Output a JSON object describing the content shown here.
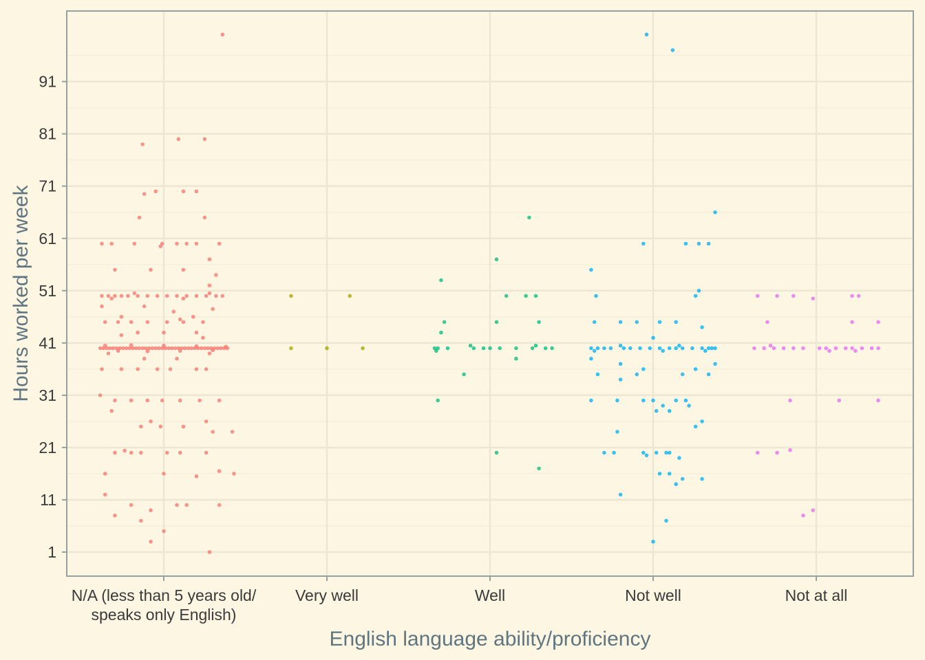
{
  "chart_data": {
    "type": "scatter",
    "jitter": "horizontal",
    "xlabel": "English language ability/proficiency",
    "ylabel": "Hours worked per week",
    "categories": [
      "N/A (less than 5 years old/\nspeaks only English)",
      "Very well",
      "Well",
      "Not well",
      "Not at all"
    ],
    "category_lines": [
      [
        "N/A (less than 5 years old/",
        "speaks only English)"
      ],
      [
        "Very well"
      ],
      [
        "Well"
      ],
      [
        "Not well"
      ],
      [
        "Not at all"
      ]
    ],
    "yticks": [
      1,
      11,
      21,
      31,
      41,
      51,
      61,
      71,
      81,
      91
    ],
    "ylim": [
      -3.6,
      104.5
    ],
    "grid": true,
    "legend": "none",
    "series_colors": [
      "#f8766d",
      "#a3a500",
      "#00bf7d",
      "#00b0f6",
      "#e76bf3"
    ],
    "series": [
      {
        "category": "N/A (less than 5 years old/\nspeaks only English)",
        "points": [
          [
            -0.39,
            40
          ],
          [
            -0.37,
            40
          ],
          [
            -0.35,
            40
          ],
          [
            -0.33,
            40
          ],
          [
            -0.31,
            40
          ],
          [
            -0.29,
            40
          ],
          [
            -0.27,
            40
          ],
          [
            -0.25,
            40
          ],
          [
            -0.23,
            40
          ],
          [
            -0.21,
            40
          ],
          [
            -0.19,
            40
          ],
          [
            -0.17,
            40
          ],
          [
            -0.15,
            40
          ],
          [
            -0.13,
            40
          ],
          [
            -0.11,
            40
          ],
          [
            -0.09,
            40
          ],
          [
            -0.07,
            40
          ],
          [
            -0.05,
            40
          ],
          [
            -0.03,
            40
          ],
          [
            -0.01,
            40
          ],
          [
            0.01,
            40
          ],
          [
            0.03,
            40
          ],
          [
            0.05,
            40
          ],
          [
            0.07,
            40
          ],
          [
            0.09,
            40
          ],
          [
            0.11,
            40
          ],
          [
            0.13,
            40
          ],
          [
            0.15,
            40
          ],
          [
            0.17,
            40
          ],
          [
            0.19,
            40
          ],
          [
            0.21,
            40
          ],
          [
            0.23,
            40
          ],
          [
            0.25,
            40
          ],
          [
            0.27,
            40
          ],
          [
            0.29,
            40
          ],
          [
            0.31,
            40
          ],
          [
            0.33,
            40
          ],
          [
            0.35,
            40
          ],
          [
            0.37,
            40
          ],
          [
            0.39,
            40
          ],
          [
            -0.36,
            40.5
          ],
          [
            -0.28,
            39.5
          ],
          [
            -0.2,
            40.6
          ],
          [
            -0.1,
            39.4
          ],
          [
            0.0,
            40.5
          ],
          [
            0.1,
            39.5
          ],
          [
            0.2,
            40.4
          ],
          [
            0.3,
            39.6
          ],
          [
            0.38,
            40.3
          ],
          [
            -0.38,
            50
          ],
          [
            -0.34,
            50
          ],
          [
            -0.3,
            50
          ],
          [
            -0.26,
            50
          ],
          [
            -0.22,
            50
          ],
          [
            -0.16,
            50
          ],
          [
            -0.1,
            50
          ],
          [
            -0.04,
            50
          ],
          [
            0.02,
            50
          ],
          [
            0.08,
            50
          ],
          [
            0.14,
            50
          ],
          [
            0.2,
            50
          ],
          [
            0.26,
            50
          ],
          [
            0.32,
            50
          ],
          [
            0.36,
            50
          ],
          [
            -0.32,
            49.5
          ],
          [
            -0.18,
            50.5
          ],
          [
            0.12,
            49.5
          ],
          [
            0.28,
            50.5
          ],
          [
            -0.38,
            60
          ],
          [
            -0.32,
            60
          ],
          [
            -0.18,
            60
          ],
          [
            -0.01,
            60
          ],
          [
            0.08,
            60
          ],
          [
            0.14,
            60
          ],
          [
            0.2,
            60
          ],
          [
            0.34,
            60
          ],
          [
            -0.02,
            59.5
          ],
          [
            -0.36,
            45
          ],
          [
            -0.28,
            45
          ],
          [
            -0.2,
            45
          ],
          [
            -0.1,
            45
          ],
          [
            0.02,
            45
          ],
          [
            0.12,
            45
          ],
          [
            0.24,
            45
          ],
          [
            0.1,
            45.5
          ],
          [
            -0.39,
            31
          ],
          [
            -0.3,
            30
          ],
          [
            -0.2,
            30
          ],
          [
            -0.1,
            30
          ],
          [
            -0.01,
            30
          ],
          [
            0.1,
            30
          ],
          [
            0.22,
            30
          ],
          [
            0.34,
            30
          ],
          [
            -0.32,
            28
          ],
          [
            -0.3,
            20
          ],
          [
            -0.2,
            20
          ],
          [
            -0.14,
            20
          ],
          [
            0.02,
            20
          ],
          [
            0.1,
            20
          ],
          [
            0.26,
            20
          ],
          [
            -0.24,
            20.4
          ],
          [
            -0.38,
            48
          ],
          [
            -0.12,
            48
          ],
          [
            0.06,
            47
          ],
          [
            0.18,
            46
          ],
          [
            -0.26,
            46
          ],
          [
            0.3,
            47.5
          ],
          [
            -0.38,
            36
          ],
          [
            -0.26,
            36
          ],
          [
            -0.16,
            36
          ],
          [
            -0.04,
            36
          ],
          [
            0.04,
            36
          ],
          [
            0.2,
            36
          ],
          [
            0.26,
            36
          ],
          [
            -0.34,
            39
          ],
          [
            -0.12,
            38
          ],
          [
            0.08,
            38
          ],
          [
            0.28,
            39
          ],
          [
            0.12,
            25
          ],
          [
            -0.14,
            25
          ],
          [
            -0.02,
            25
          ],
          [
            0.3,
            24
          ],
          [
            0.42,
            24
          ],
          [
            -0.08,
            26
          ],
          [
            0.26,
            26
          ],
          [
            -0.16,
            43
          ],
          [
            0.0,
            43
          ],
          [
            0.2,
            43
          ],
          [
            -0.26,
            42.5
          ],
          [
            0.24,
            42
          ],
          [
            -0.3,
            55
          ],
          [
            -0.08,
            55
          ],
          [
            0.12,
            55
          ],
          [
            0.32,
            54
          ],
          [
            0.28,
            52
          ],
          [
            -0.15,
            65
          ],
          [
            0.25,
            65
          ],
          [
            -0.05,
            70
          ],
          [
            0.12,
            70
          ],
          [
            0.2,
            70
          ],
          [
            -0.12,
            69.5
          ],
          [
            -0.13,
            79
          ],
          [
            0.09,
            80
          ],
          [
            0.25,
            80
          ],
          [
            0.36,
            100
          ],
          [
            0.28,
            57
          ],
          [
            0.43,
            16
          ],
          [
            -0.36,
            16
          ],
          [
            0.0,
            16
          ],
          [
            0.2,
            15.5
          ],
          [
            0.34,
            16.5
          ],
          [
            -0.36,
            12
          ],
          [
            -0.3,
            8
          ],
          [
            -0.2,
            10
          ],
          [
            -0.14,
            7
          ],
          [
            -0.08,
            9
          ],
          [
            0.0,
            5
          ],
          [
            0.08,
            10
          ],
          [
            0.14,
            10
          ],
          [
            0.34,
            10
          ],
          [
            -0.08,
            3
          ],
          [
            0.28,
            1
          ]
        ]
      },
      {
        "category": "Very well",
        "points": [
          [
            -0.22,
            40
          ],
          [
            0.0,
            40
          ],
          [
            0.22,
            40
          ],
          [
            -0.22,
            50
          ],
          [
            0.14,
            50
          ]
        ]
      },
      {
        "category": "Well",
        "points": [
          [
            -0.34,
            40
          ],
          [
            -0.32,
            40
          ],
          [
            -0.26,
            40
          ],
          [
            -0.1,
            40
          ],
          [
            -0.04,
            40
          ],
          [
            0.0,
            40
          ],
          [
            0.06,
            40
          ],
          [
            0.16,
            40
          ],
          [
            0.26,
            40
          ],
          [
            0.34,
            40
          ],
          [
            0.38,
            40
          ],
          [
            -0.33,
            39.5
          ],
          [
            -0.12,
            40.5
          ],
          [
            0.28,
            40.5
          ],
          [
            -0.3,
            53
          ],
          [
            -0.28,
            45
          ],
          [
            -0.3,
            43
          ],
          [
            0.04,
            45
          ],
          [
            0.3,
            45
          ],
          [
            -0.32,
            30
          ],
          [
            -0.16,
            35
          ],
          [
            0.16,
            38
          ],
          [
            0.1,
            50
          ],
          [
            0.22,
            50
          ],
          [
            0.28,
            50
          ],
          [
            0.04,
            57
          ],
          [
            0.24,
            65
          ],
          [
            0.04,
            20
          ],
          [
            0.3,
            17
          ]
        ]
      },
      {
        "category": "Not well",
        "points": [
          [
            -0.38,
            40
          ],
          [
            -0.34,
            40
          ],
          [
            -0.3,
            40
          ],
          [
            -0.26,
            40
          ],
          [
            -0.18,
            40
          ],
          [
            -0.14,
            40
          ],
          [
            -0.08,
            40
          ],
          [
            -0.02,
            40
          ],
          [
            0.04,
            40
          ],
          [
            0.1,
            40
          ],
          [
            0.14,
            40
          ],
          [
            0.18,
            40
          ],
          [
            0.24,
            40
          ],
          [
            0.3,
            40
          ],
          [
            0.34,
            40
          ],
          [
            0.36,
            40
          ],
          [
            0.38,
            40
          ],
          [
            -0.36,
            39.5
          ],
          [
            -0.2,
            40.5
          ],
          [
            0.06,
            39.5
          ],
          [
            0.16,
            40.5
          ],
          [
            0.32,
            39.5
          ],
          [
            -0.35,
            50
          ],
          [
            0.26,
            50
          ],
          [
            0.28,
            51
          ],
          [
            -0.36,
            45
          ],
          [
            -0.2,
            45
          ],
          [
            -0.1,
            45
          ],
          [
            0.04,
            45
          ],
          [
            0.14,
            45
          ],
          [
            0.3,
            44
          ],
          [
            -0.38,
            38
          ],
          [
            -0.2,
            37
          ],
          [
            -0.06,
            36
          ],
          [
            -0.34,
            35
          ],
          [
            -0.2,
            34
          ],
          [
            -0.1,
            35
          ],
          [
            0.18,
            35
          ],
          [
            0.26,
            36
          ],
          [
            0.34,
            35
          ],
          [
            0.38,
            37
          ],
          [
            0.0,
            42
          ],
          [
            -0.38,
            30
          ],
          [
            -0.22,
            30
          ],
          [
            -0.06,
            30
          ],
          [
            0.0,
            30
          ],
          [
            0.14,
            30
          ],
          [
            0.2,
            30
          ],
          [
            0.22,
            29
          ],
          [
            0.02,
            28
          ],
          [
            0.06,
            29
          ],
          [
            0.1,
            28
          ],
          [
            0.26,
            25
          ],
          [
            0.3,
            26
          ],
          [
            -0.22,
            24
          ],
          [
            -0.3,
            20
          ],
          [
            -0.24,
            20
          ],
          [
            -0.06,
            20
          ],
          [
            -0.04,
            19.5
          ],
          [
            0.08,
            20
          ],
          [
            0.1,
            20
          ],
          [
            0.16,
            19
          ],
          [
            0.02,
            20
          ],
          [
            -0.2,
            12
          ],
          [
            0.04,
            16
          ],
          [
            0.1,
            16
          ],
          [
            0.14,
            14
          ],
          [
            0.18,
            15
          ],
          [
            0.3,
            15
          ],
          [
            0.08,
            7
          ],
          [
            0.0,
            3
          ],
          [
            -0.38,
            55
          ],
          [
            -0.06,
            60
          ],
          [
            0.2,
            60
          ],
          [
            0.28,
            60
          ],
          [
            0.34,
            60
          ],
          [
            0.38,
            66
          ],
          [
            -0.04,
            100
          ],
          [
            0.12,
            97
          ]
        ]
      },
      {
        "category": "Not at all",
        "points": [
          [
            -0.38,
            40
          ],
          [
            -0.32,
            40
          ],
          [
            -0.26,
            40
          ],
          [
            -0.2,
            40
          ],
          [
            -0.14,
            40
          ],
          [
            -0.08,
            40
          ],
          [
            0.02,
            40
          ],
          [
            0.06,
            40
          ],
          [
            0.12,
            40
          ],
          [
            0.18,
            40
          ],
          [
            0.22,
            40
          ],
          [
            0.28,
            40
          ],
          [
            0.34,
            40
          ],
          [
            0.38,
            40
          ],
          [
            -0.28,
            40.5
          ],
          [
            0.08,
            39.5
          ],
          [
            0.24,
            39.5
          ],
          [
            -0.36,
            50
          ],
          [
            -0.24,
            50
          ],
          [
            -0.14,
            50
          ],
          [
            -0.02,
            49.5
          ],
          [
            0.22,
            50
          ],
          [
            0.26,
            50
          ],
          [
            -0.3,
            45
          ],
          [
            0.22,
            45
          ],
          [
            0.38,
            45
          ],
          [
            -0.16,
            30
          ],
          [
            0.14,
            30
          ],
          [
            0.38,
            30
          ],
          [
            -0.36,
            20
          ],
          [
            -0.24,
            20
          ],
          [
            -0.16,
            20.5
          ],
          [
            -0.08,
            8
          ],
          [
            -0.02,
            9
          ]
        ]
      }
    ]
  }
}
